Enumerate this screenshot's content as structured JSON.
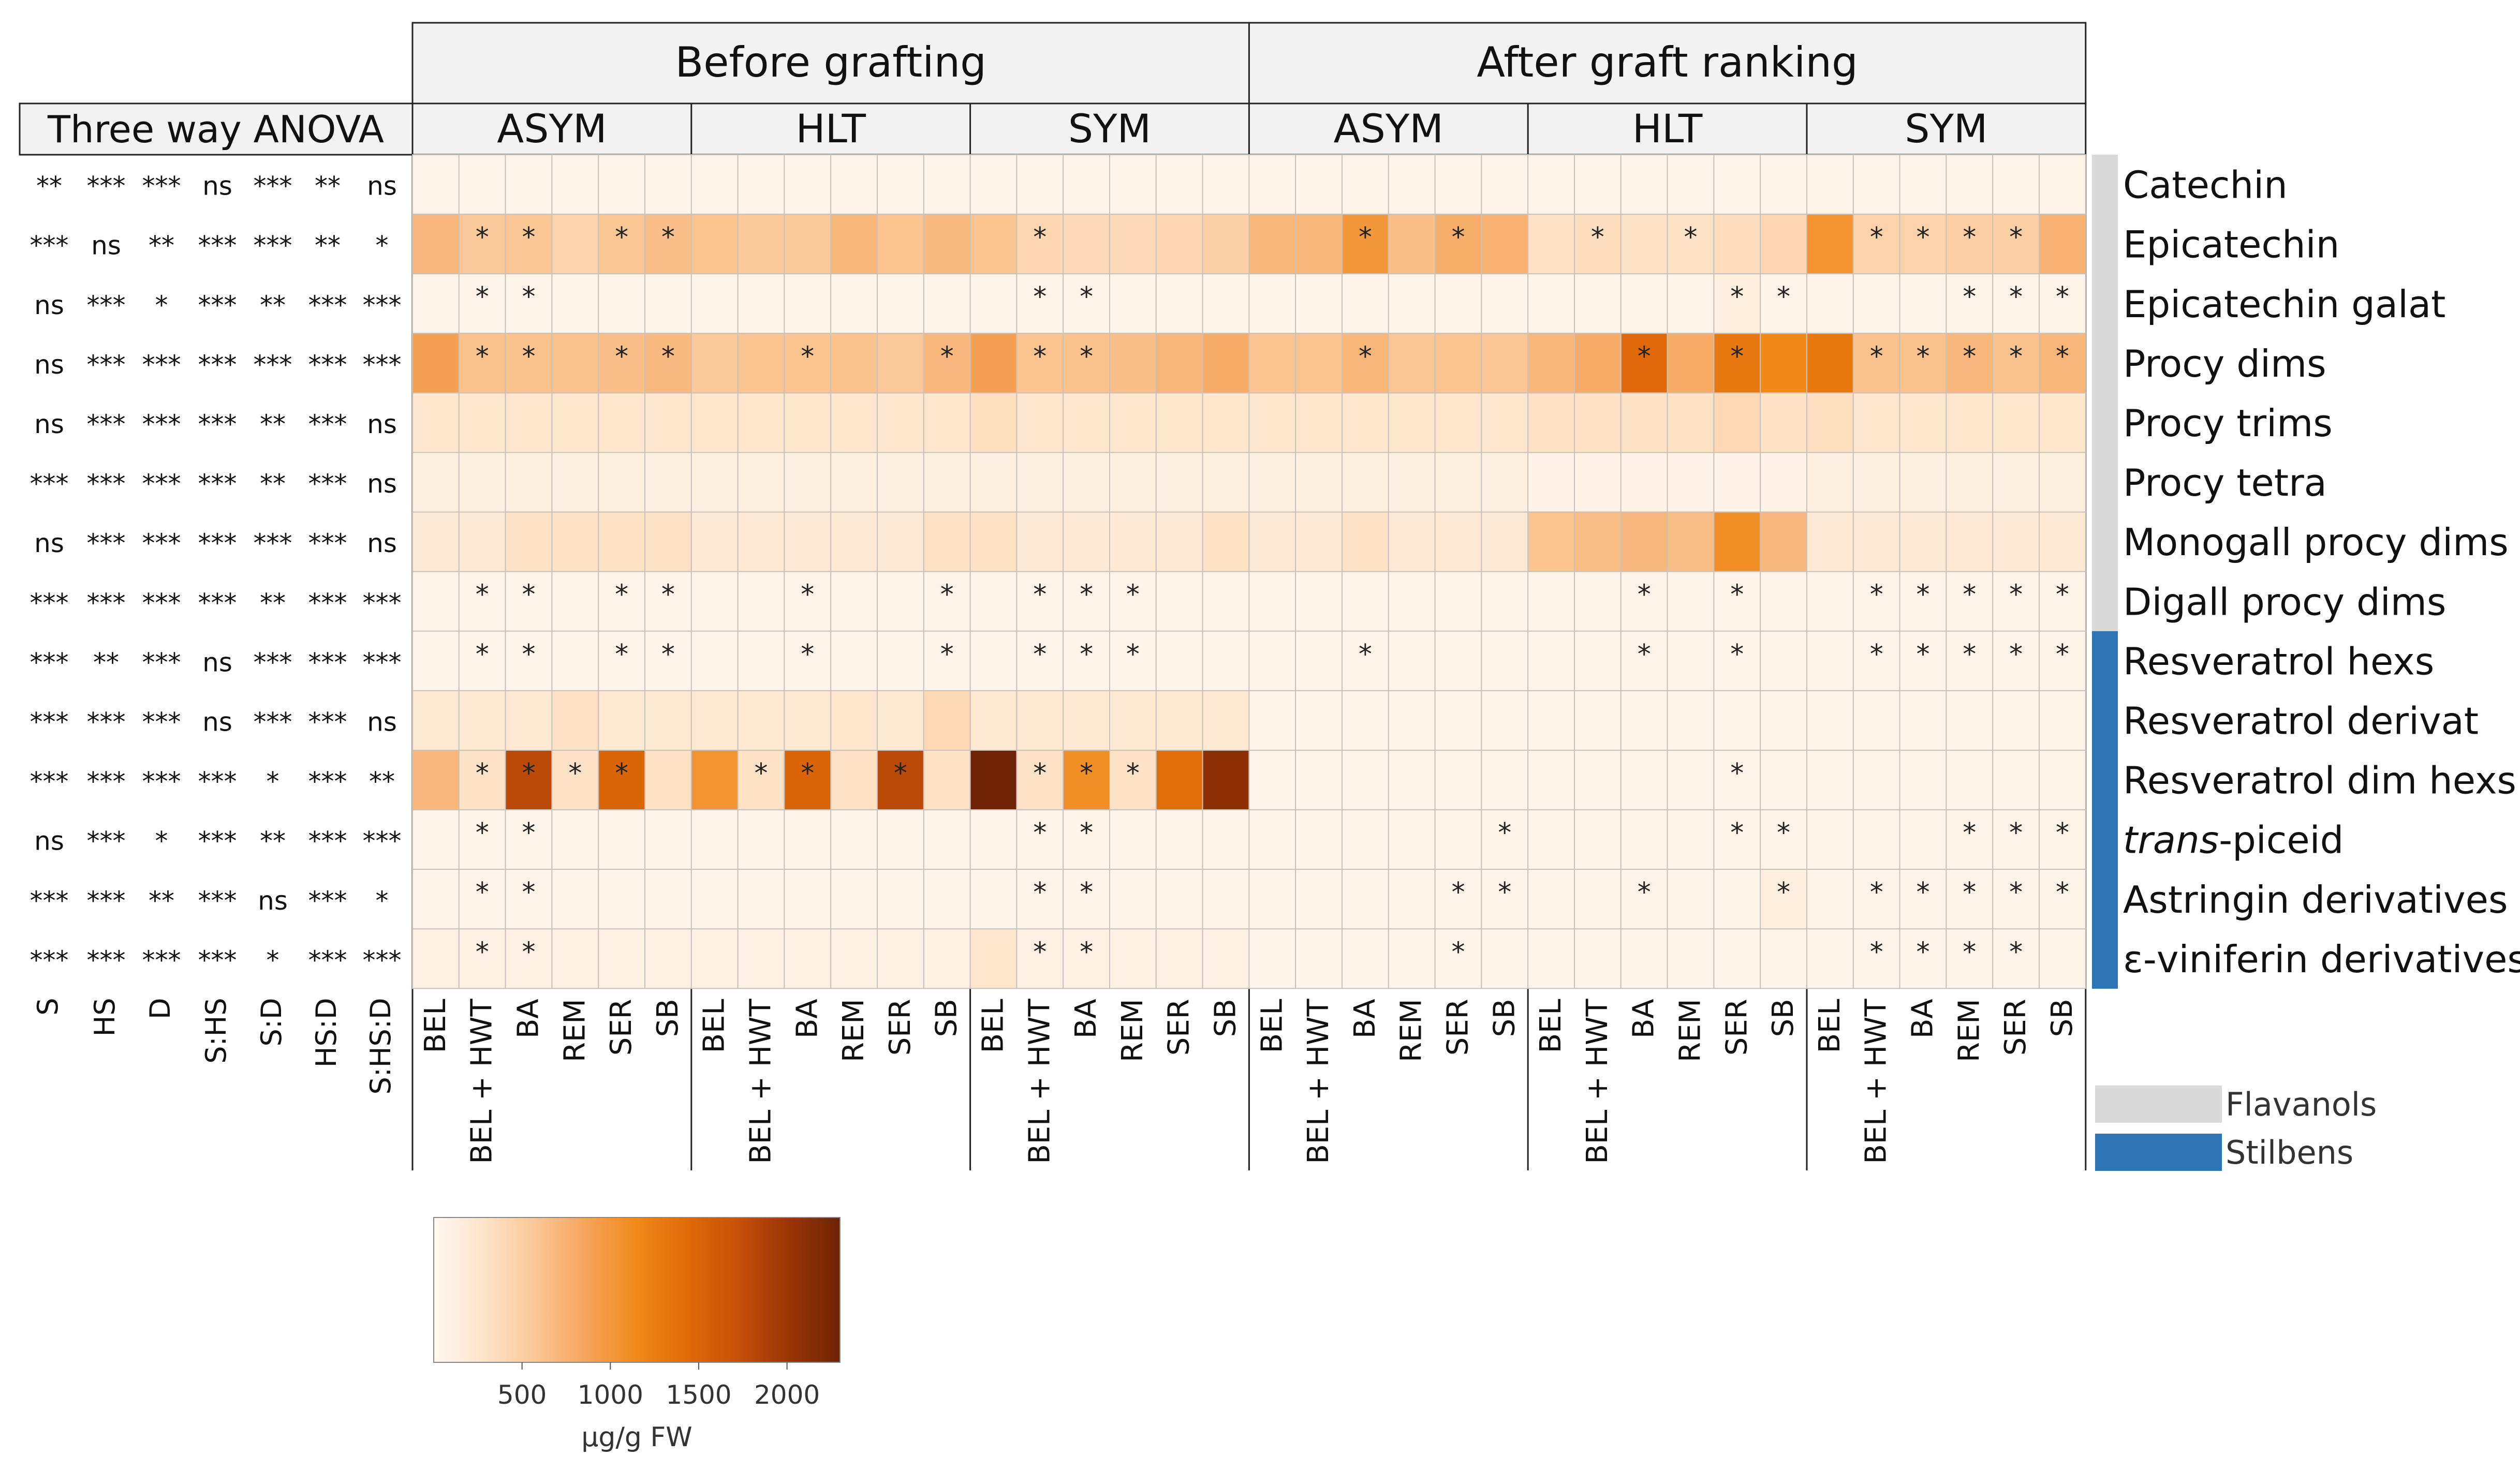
{
  "chart_data": {
    "type": "heatmap",
    "periods": [
      {
        "label": "Before grafting",
        "groups": [
          "ASYM",
          "HLT",
          "SYM"
        ]
      },
      {
        "label": "After graft ranking",
        "groups": [
          "ASYM",
          "HLT",
          "SYM"
        ]
      }
    ],
    "treatments": [
      "BEL",
      "BEL + HWT",
      "BA",
      "REM",
      "SER",
      "SB"
    ],
    "compounds": [
      {
        "name": "Catechin",
        "class": "Flavanols"
      },
      {
        "name": "Epicatechin",
        "class": "Flavanols"
      },
      {
        "name": "Epicatechin galat",
        "class": "Flavanols"
      },
      {
        "name": "Procy dims",
        "class": "Flavanols"
      },
      {
        "name": "Procy trims",
        "class": "Flavanols"
      },
      {
        "name": "Procy tetra",
        "class": "Flavanols"
      },
      {
        "name": "Monogall procy dims",
        "class": "Flavanols"
      },
      {
        "name": "Digall procy dims",
        "class": "Flavanols"
      },
      {
        "name": "Resveratrol hexs",
        "class": "Stilbens"
      },
      {
        "name": "Resveratrol derivat",
        "class": "Stilbens"
      },
      {
        "name": "Resveratrol dim hexs",
        "class": "Stilbens"
      },
      {
        "name": "trans-piceid",
        "class": "Stilbens",
        "italic_prefix": "trans",
        "rest": "-piceid"
      },
      {
        "name": "Astringin derivatives",
        "class": "Stilbens"
      },
      {
        "name": "ε-viniferin derivatives",
        "class": "Stilbens"
      }
    ],
    "values": [
      [
        40,
        40,
        40,
        40,
        40,
        40,
        40,
        40,
        40,
        40,
        40,
        40,
        40,
        40,
        40,
        40,
        40,
        40,
        40,
        40,
        40,
        40,
        40,
        40,
        40,
        40,
        40,
        40,
        40,
        40,
        40,
        40,
        40,
        40,
        40,
        40
      ],
      [
        700,
        560,
        580,
        450,
        580,
        640,
        600,
        560,
        540,
        720,
        600,
        680,
        600,
        420,
        380,
        380,
        420,
        480,
        720,
        720,
        1000,
        640,
        780,
        750,
        300,
        340,
        300,
        300,
        350,
        420,
        1050,
        460,
        460,
        500,
        500,
        750
      ],
      [
        40,
        40,
        40,
        40,
        40,
        40,
        40,
        40,
        40,
        40,
        40,
        40,
        40,
        40,
        40,
        40,
        40,
        40,
        40,
        40,
        40,
        40,
        40,
        40,
        40,
        40,
        40,
        40,
        120,
        40,
        40,
        40,
        40,
        40,
        40,
        40
      ],
      [
        900,
        620,
        620,
        620,
        640,
        680,
        560,
        600,
        600,
        620,
        560,
        700,
        900,
        600,
        620,
        640,
        720,
        800,
        600,
        600,
        720,
        580,
        600,
        580,
        720,
        800,
        1450,
        800,
        1300,
        1150,
        1300,
        620,
        620,
        700,
        620,
        720
      ],
      [
        240,
        240,
        240,
        240,
        240,
        240,
        240,
        240,
        240,
        240,
        240,
        240,
        320,
        240,
        240,
        240,
        240,
        240,
        240,
        240,
        240,
        240,
        240,
        240,
        300,
        300,
        300,
        300,
        400,
        300,
        320,
        240,
        240,
        240,
        240,
        240
      ],
      [
        100,
        100,
        100,
        100,
        100,
        100,
        100,
        100,
        100,
        100,
        100,
        100,
        100,
        100,
        100,
        100,
        100,
        100,
        100,
        100,
        100,
        100,
        100,
        100,
        60,
        60,
        60,
        60,
        60,
        60,
        100,
        100,
        100,
        100,
        100,
        100
      ],
      [
        200,
        200,
        300,
        300,
        300,
        300,
        200,
        200,
        200,
        200,
        200,
        300,
        300,
        200,
        200,
        200,
        200,
        300,
        200,
        200,
        300,
        200,
        200,
        200,
        600,
        650,
        700,
        650,
        1100,
        700,
        200,
        200,
        200,
        200,
        200,
        200
      ],
      [
        40,
        40,
        40,
        40,
        40,
        40,
        40,
        40,
        40,
        40,
        40,
        40,
        40,
        40,
        40,
        40,
        40,
        40,
        40,
        40,
        40,
        40,
        40,
        40,
        40,
        40,
        40,
        40,
        40,
        40,
        40,
        40,
        40,
        40,
        40,
        40
      ],
      [
        40,
        40,
        40,
        40,
        40,
        40,
        40,
        40,
        40,
        40,
        40,
        40,
        40,
        40,
        40,
        40,
        40,
        40,
        40,
        40,
        40,
        40,
        40,
        40,
        40,
        40,
        40,
        40,
        40,
        40,
        40,
        40,
        40,
        40,
        40,
        40
      ],
      [
        220,
        220,
        220,
        300,
        220,
        220,
        220,
        220,
        220,
        240,
        220,
        400,
        220,
        220,
        220,
        220,
        220,
        220,
        40,
        40,
        40,
        40,
        40,
        40,
        40,
        40,
        40,
        40,
        40,
        40,
        40,
        40,
        40,
        40,
        40,
        40
      ],
      [
        700,
        300,
        1800,
        300,
        1500,
        300,
        1050,
        300,
        1500,
        300,
        1800,
        300,
        2300,
        300,
        1100,
        300,
        1400,
        2100,
        40,
        40,
        40,
        40,
        40,
        40,
        40,
        40,
        40,
        40,
        40,
        40,
        40,
        40,
        40,
        40,
        40,
        40
      ],
      [
        40,
        40,
        40,
        40,
        40,
        40,
        40,
        40,
        40,
        40,
        40,
        40,
        40,
        40,
        40,
        40,
        40,
        40,
        40,
        40,
        40,
        40,
        40,
        40,
        40,
        40,
        40,
        40,
        40,
        40,
        40,
        40,
        40,
        40,
        40,
        40
      ],
      [
        40,
        40,
        40,
        40,
        40,
        40,
        40,
        40,
        40,
        40,
        40,
        40,
        40,
        40,
        40,
        40,
        40,
        40,
        40,
        40,
        40,
        40,
        40,
        40,
        40,
        40,
        40,
        40,
        40,
        120,
        40,
        40,
        40,
        40,
        40,
        40
      ],
      [
        80,
        80,
        80,
        80,
        80,
        80,
        80,
        80,
        80,
        80,
        80,
        80,
        250,
        80,
        80,
        80,
        80,
        80,
        40,
        40,
        40,
        40,
        40,
        40,
        40,
        40,
        40,
        40,
        40,
        40,
        40,
        40,
        40,
        40,
        40,
        40
      ]
    ],
    "significance": [
      [],
      [
        1,
        2,
        4,
        5,
        13,
        20,
        22,
        25,
        27,
        31,
        32,
        33,
        34
      ],
      [
        1,
        2,
        13,
        14,
        28,
        29,
        33,
        34,
        35
      ],
      [
        1,
        2,
        4,
        5,
        8,
        11,
        13,
        14,
        20,
        26,
        28,
        31,
        32,
        33,
        34,
        35
      ],
      [],
      [],
      [],
      [
        1,
        2,
        4,
        5,
        8,
        11,
        13,
        14,
        15,
        26,
        28,
        31,
        32,
        33,
        34,
        35
      ],
      [
        1,
        2,
        4,
        5,
        8,
        11,
        13,
        14,
        15,
        20,
        26,
        28,
        31,
        32,
        33,
        34,
        35
      ],
      [],
      [
        1,
        2,
        3,
        4,
        7,
        8,
        10,
        13,
        14,
        15,
        28
      ],
      [
        1,
        2,
        13,
        14,
        23,
        28,
        29,
        33,
        34,
        35
      ],
      [
        1,
        2,
        13,
        14,
        22,
        23,
        26,
        29,
        31,
        32,
        33,
        34,
        35
      ],
      [
        1,
        2,
        13,
        14,
        22,
        31,
        32,
        33,
        34
      ]
    ],
    "anova": {
      "title": "Three way ANOVA",
      "factors": [
        "S",
        "HS",
        "D",
        "S:HS",
        "S:D",
        "HS:D",
        "S:HS:D"
      ],
      "rows": [
        [
          "**",
          "***",
          "***",
          "ns",
          "***",
          "**",
          "ns"
        ],
        [
          "***",
          "ns",
          "**",
          "***",
          "***",
          "**",
          "*"
        ],
        [
          "ns",
          "***",
          "*",
          "***",
          "**",
          "***",
          "***"
        ],
        [
          "ns",
          "***",
          "***",
          "***",
          "***",
          "***",
          "***"
        ],
        [
          "ns",
          "***",
          "***",
          "***",
          "**",
          "***",
          "ns"
        ],
        [
          "***",
          "***",
          "***",
          "***",
          "**",
          "***",
          "ns"
        ],
        [
          "ns",
          "***",
          "***",
          "***",
          "***",
          "***",
          "ns"
        ],
        [
          "***",
          "***",
          "***",
          "***",
          "**",
          "***",
          "***"
        ],
        [
          "***",
          "**",
          "***",
          "ns",
          "***",
          "***",
          "***"
        ],
        [
          "***",
          "***",
          "***",
          "ns",
          "***",
          "***",
          "ns"
        ],
        [
          "***",
          "***",
          "***",
          "***",
          "*",
          "***",
          "**"
        ],
        [
          "ns",
          "***",
          "*",
          "***",
          "**",
          "***",
          "***"
        ],
        [
          "***",
          "***",
          "**",
          "***",
          "ns",
          "***",
          "*"
        ],
        [
          "***",
          "***",
          "***",
          "***",
          "*",
          "***",
          "***"
        ]
      ]
    },
    "legend": {
      "classes": [
        {
          "name": "Flavanols",
          "color": "#d9d9d9"
        },
        {
          "name": "Stilbens",
          "color": "#2e75b6"
        }
      ]
    },
    "colorbar": {
      "label": "µg/g FW",
      "ticks": [
        500,
        1000,
        1500,
        2000
      ],
      "range": [
        0,
        2300
      ],
      "colors": [
        "#fff7ef",
        "#fde3c8",
        "#fbc796",
        "#f5a45a",
        "#f0891a",
        "#e06a08",
        "#c65008",
        "#9a3506",
        "#6e2304"
      ]
    },
    "star_symbol": "*"
  }
}
